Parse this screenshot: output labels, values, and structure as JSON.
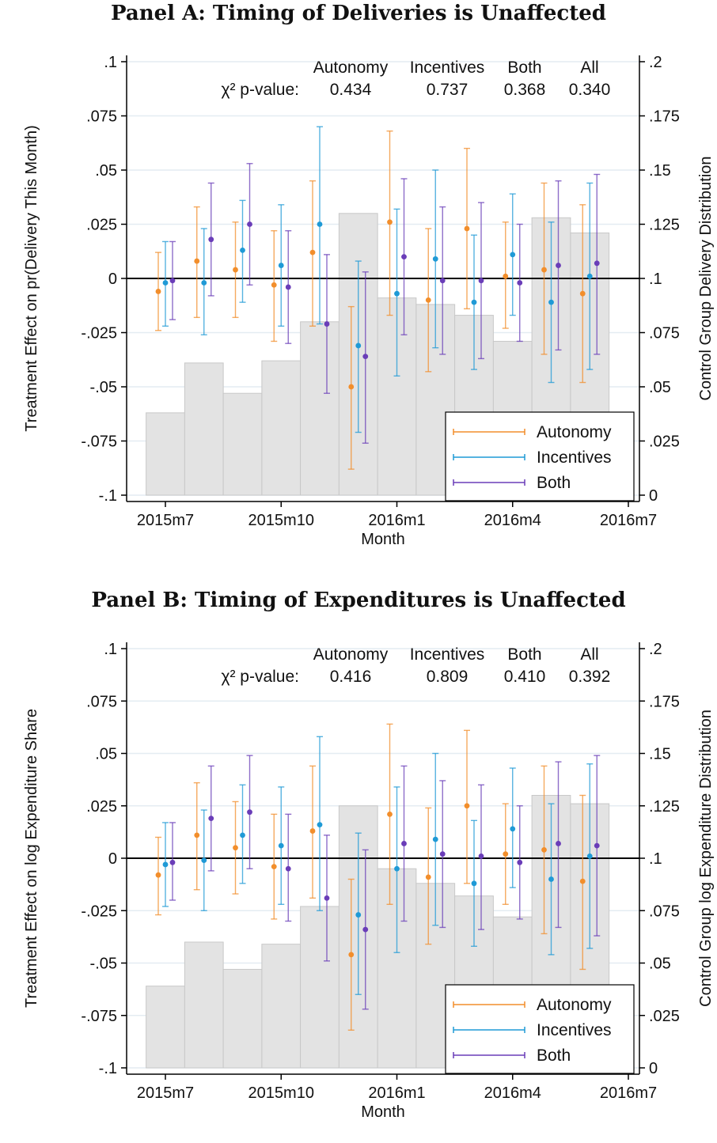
{
  "colors": {
    "autonomy": "#f28e2b",
    "incentives": "#1f9ad6",
    "both": "#6a3db8",
    "bar_fill": "#e3e3e3",
    "bar_stroke": "#c8c8c8",
    "grid": "#e4ecf2"
  },
  "chart_data": [
    {
      "type": "scatter",
      "title": "Panel A: Timing of Deliveries is Unaffected",
      "xlabel": "Month",
      "ylabel": "Treatment Effect on pr(Delivery This Month)",
      "y2label": "Control Group Delivery Distribution",
      "x_ticks": [
        "2015m7",
        "2015m10",
        "2016m1",
        "2016m4",
        "2016m7"
      ],
      "y_ticks": [
        ".1",
        ".075",
        ".05",
        ".025",
        "0",
        "-.025",
        "-.05",
        "-.075",
        "-.1"
      ],
      "y2_ticks": [
        ".2",
        ".175",
        ".15",
        ".125",
        ".1",
        ".075",
        ".05",
        ".025",
        "0"
      ],
      "ylim": [
        -0.1,
        0.1
      ],
      "y2lim": [
        0,
        0.2
      ],
      "grid": true,
      "legend_position": "bottom-right",
      "pvalues": {
        "label": "χ² p-value:",
        "headers": [
          "Autonomy",
          "Incentives",
          "Both",
          "All"
        ],
        "values": [
          "0.434",
          "0.737",
          "0.368",
          "0.340"
        ]
      },
      "months": [
        "2015m7",
        "2015m8",
        "2015m9",
        "2015m10",
        "2015m11",
        "2015m12",
        "2016m1",
        "2016m2",
        "2016m3",
        "2016m4",
        "2016m5",
        "2016m6"
      ],
      "control_distribution": [
        0.038,
        0.061,
        0.047,
        0.062,
        0.08,
        0.13,
        0.091,
        0.088,
        0.083,
        0.071,
        0.128,
        0.121
      ],
      "series": [
        {
          "name": "Autonomy",
          "estimates": [
            -0.006,
            0.008,
            0.004,
            -0.003,
            0.012,
            -0.05,
            0.026,
            -0.01,
            0.023,
            0.001,
            0.004,
            -0.007
          ],
          "lower": [
            -0.024,
            -0.018,
            -0.018,
            -0.029,
            -0.022,
            -0.088,
            -0.017,
            -0.043,
            -0.014,
            -0.023,
            -0.035,
            -0.048
          ],
          "upper": [
            0.012,
            0.033,
            0.026,
            0.022,
            0.045,
            -0.013,
            0.068,
            0.023,
            0.06,
            0.026,
            0.044,
            0.034
          ]
        },
        {
          "name": "Incentives",
          "estimates": [
            -0.002,
            -0.002,
            0.013,
            0.006,
            0.025,
            -0.031,
            -0.007,
            0.009,
            -0.011,
            0.011,
            -0.011,
            0.001
          ],
          "lower": [
            -0.022,
            -0.026,
            -0.011,
            -0.022,
            -0.021,
            -0.071,
            -0.045,
            -0.032,
            -0.042,
            -0.017,
            -0.048,
            -0.042
          ],
          "upper": [
            0.017,
            0.023,
            0.036,
            0.034,
            0.07,
            0.008,
            0.032,
            0.05,
            0.02,
            0.039,
            0.026,
            0.044
          ]
        },
        {
          "name": "Both",
          "estimates": [
            -0.001,
            0.018,
            0.025,
            -0.004,
            -0.021,
            -0.036,
            0.01,
            -0.001,
            -0.001,
            -0.002,
            0.006,
            0.007
          ],
          "lower": [
            -0.019,
            -0.008,
            -0.003,
            -0.03,
            -0.053,
            -0.076,
            -0.026,
            -0.035,
            -0.037,
            -0.029,
            -0.033,
            -0.035
          ],
          "upper": [
            0.017,
            0.044,
            0.053,
            0.022,
            0.011,
            0.003,
            0.046,
            0.033,
            0.035,
            0.025,
            0.045,
            0.048
          ]
        }
      ]
    },
    {
      "type": "scatter",
      "title": "Panel B: Timing of Expenditures is Unaffected",
      "xlabel": "Month",
      "ylabel": "Treatment Effect on log Expenditure Share",
      "y2label": "Control Group log Expenditure Distribution",
      "x_ticks": [
        "2015m7",
        "2015m10",
        "2016m1",
        "2016m4",
        "2016m7"
      ],
      "y_ticks": [
        ".1",
        ".075",
        ".05",
        ".025",
        "0",
        "-.025",
        "-.05",
        "-.075",
        "-.1"
      ],
      "y2_ticks": [
        ".2",
        ".175",
        ".15",
        ".125",
        ".1",
        ".075",
        ".05",
        ".025",
        "0"
      ],
      "ylim": [
        -0.1,
        0.1
      ],
      "y2lim": [
        0,
        0.2
      ],
      "grid": true,
      "legend_position": "bottom-right",
      "pvalues": {
        "label": "χ² p-value:",
        "headers": [
          "Autonomy",
          "Incentives",
          "Both",
          "All"
        ],
        "values": [
          "0.416",
          "0.809",
          "0.410",
          "0.392"
        ]
      },
      "months": [
        "2015m7",
        "2015m8",
        "2015m9",
        "2015m10",
        "2015m11",
        "2015m12",
        "2016m1",
        "2016m2",
        "2016m3",
        "2016m4",
        "2016m5",
        "2016m6"
      ],
      "control_distribution": [
        0.039,
        0.06,
        0.047,
        0.059,
        0.077,
        0.125,
        0.095,
        0.088,
        0.082,
        0.072,
        0.13,
        0.126
      ],
      "series": [
        {
          "name": "Autonomy",
          "estimates": [
            -0.008,
            0.011,
            0.005,
            -0.004,
            0.013,
            -0.046,
            0.021,
            -0.009,
            0.025,
            0.002,
            0.004,
            -0.011
          ],
          "lower": [
            -0.027,
            -0.015,
            -0.017,
            -0.029,
            -0.019,
            -0.082,
            -0.022,
            -0.041,
            -0.012,
            -0.022,
            -0.036,
            -0.053
          ],
          "upper": [
            0.01,
            0.036,
            0.027,
            0.021,
            0.044,
            -0.01,
            0.064,
            0.024,
            0.061,
            0.026,
            0.044,
            0.03
          ]
        },
        {
          "name": "Incentives",
          "estimates": [
            -0.003,
            -0.001,
            0.011,
            0.006,
            0.016,
            -0.027,
            -0.005,
            0.009,
            -0.012,
            0.014,
            -0.01,
            0.001
          ],
          "lower": [
            -0.023,
            -0.025,
            -0.012,
            -0.022,
            -0.025,
            -0.065,
            -0.045,
            -0.032,
            -0.042,
            -0.014,
            -0.046,
            -0.043
          ],
          "upper": [
            0.017,
            0.023,
            0.035,
            0.034,
            0.058,
            0.012,
            0.034,
            0.05,
            0.018,
            0.043,
            0.026,
            0.045
          ]
        },
        {
          "name": "Both",
          "estimates": [
            -0.002,
            0.019,
            0.022,
            -0.005,
            -0.019,
            -0.034,
            0.007,
            0.002,
            0.001,
            -0.002,
            0.007,
            0.006
          ],
          "lower": [
            -0.02,
            -0.006,
            -0.005,
            -0.03,
            -0.049,
            -0.072,
            -0.03,
            -0.033,
            -0.034,
            -0.029,
            -0.033,
            -0.037
          ],
          "upper": [
            0.017,
            0.044,
            0.049,
            0.021,
            0.011,
            0.004,
            0.044,
            0.037,
            0.035,
            0.025,
            0.046,
            0.049
          ]
        }
      ]
    }
  ]
}
